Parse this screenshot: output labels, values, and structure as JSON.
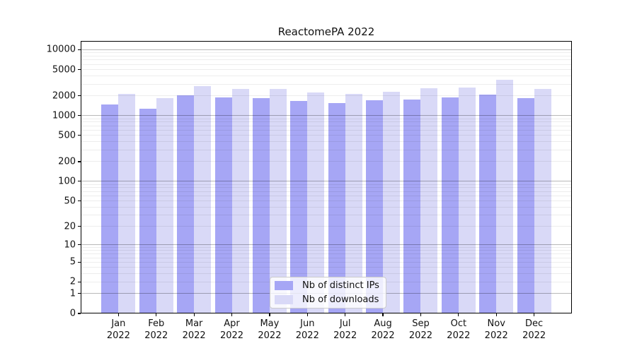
{
  "chart_data": {
    "type": "bar",
    "title": "ReactomePA 2022",
    "categories": [
      "Jan 2022",
      "Feb 2022",
      "Mar 2022",
      "Apr 2022",
      "May 2022",
      "Jun 2022",
      "Jul 2022",
      "Aug 2022",
      "Sep 2022",
      "Oct 2022",
      "Nov 2022",
      "Dec 2022"
    ],
    "series": [
      {
        "name": "Nb of distinct IPs",
        "color": "#a6a6f5",
        "values": [
          1470,
          1280,
          2020,
          1870,
          1830,
          1690,
          1550,
          1720,
          1750,
          1870,
          2100,
          1850
        ]
      },
      {
        "name": "Nb of downloads",
        "color": "#d9d9f7",
        "values": [
          2130,
          1860,
          2800,
          2560,
          2560,
          2240,
          2140,
          2330,
          2600,
          2690,
          3500,
          2530
        ]
      }
    ],
    "xlabel": "",
    "ylabel": "",
    "yscale": "log1p",
    "ylim": [
      0,
      13600
    ],
    "y_tick_labels": [
      0,
      1,
      2,
      5,
      10,
      20,
      50,
      100,
      200,
      500,
      1000,
      2000,
      5000,
      10000
    ],
    "grid": "horizontal major gridlines at powers of 10, minor log gridlines between",
    "legend_position": "lower center inside plot"
  }
}
